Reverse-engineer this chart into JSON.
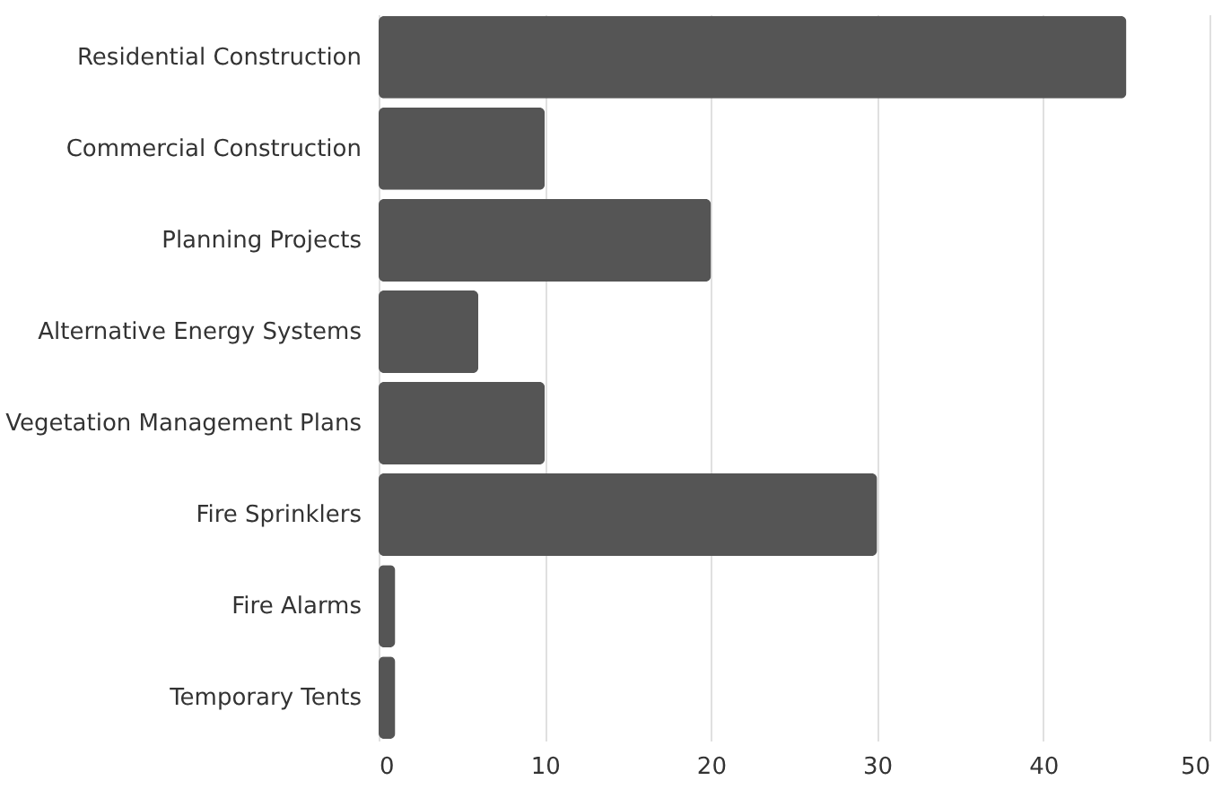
{
  "chart_data": {
    "type": "bar",
    "orientation": "horizontal",
    "categories": [
      "Residential Construction",
      "Commercial Construction",
      "Planning Projects",
      "Alternative Energy Systems",
      "Vegetation Management Plans",
      "Fire Sprinklers",
      "Fire Alarms",
      "Temporary Tents"
    ],
    "values": [
      45,
      10,
      20,
      6,
      10,
      30,
      1,
      1
    ],
    "color": "#555555",
    "xlim": [
      0,
      50
    ],
    "xticks": [
      0,
      10,
      20,
      30,
      40,
      50
    ],
    "grid": "x"
  }
}
